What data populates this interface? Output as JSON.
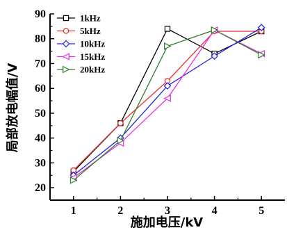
{
  "chart_data": {
    "type": "line",
    "xlabel": "施加电压/kV",
    "ylabel": "局部放电幅值/V",
    "x": [
      1,
      2,
      3,
      4,
      5
    ],
    "xlim": [
      0.5,
      5.5
    ],
    "ylim": [
      15,
      90
    ],
    "xticks": [
      "1",
      "2",
      "3",
      "4",
      "5"
    ],
    "yticks": [
      "20",
      "30",
      "40",
      "50",
      "60",
      "70",
      "80",
      "90"
    ],
    "grid": false,
    "legend_position": "top-left",
    "series": [
      {
        "name": "1kHz",
        "color": "#000000",
        "marker": "square",
        "values": [
          26.5,
          46,
          84,
          74,
          83
        ]
      },
      {
        "name": "5kHz",
        "color": "#e8302a",
        "marker": "circle",
        "values": [
          27,
          46,
          63,
          83,
          83
        ]
      },
      {
        "name": "10kHz",
        "color": "#1f1fe0",
        "marker": "diamond",
        "values": [
          25,
          40,
          61,
          73,
          84.5
        ]
      },
      {
        "name": "15kHz",
        "color": "#e62ee6",
        "marker": "triangle-left",
        "values": [
          24,
          38,
          56,
          83.5,
          74
        ]
      },
      {
        "name": "20kHz",
        "color": "#2e7d2e",
        "marker": "triangle-right",
        "values": [
          23,
          39,
          77,
          83.5,
          73.5
        ]
      }
    ]
  }
}
